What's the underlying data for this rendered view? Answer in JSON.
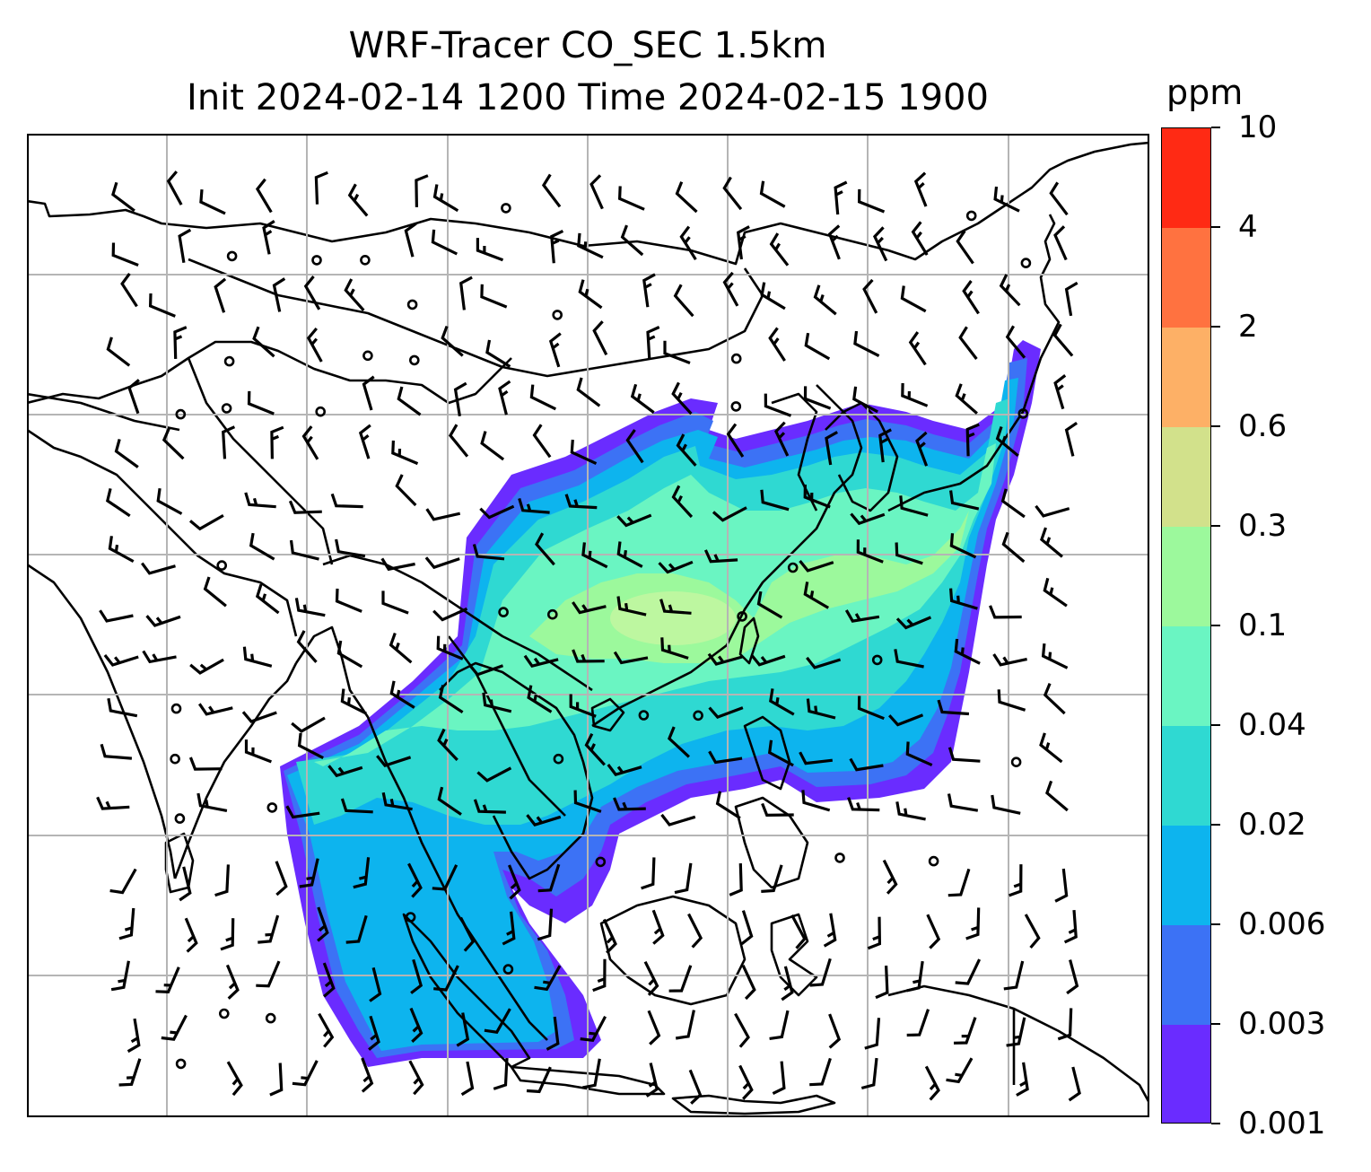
{
  "title": {
    "line1": "WRF-Tracer CO_SEC 1.5km",
    "line2": "Init 2024-02-14 1200 Time 2024-02-15 1900"
  },
  "colorbar": {
    "unit": "ppm",
    "levels": [
      "0.001",
      "0.003",
      "0.006",
      "0.02",
      "0.04",
      "0.1",
      "0.3",
      "0.6",
      "2",
      "4",
      "10"
    ],
    "colors": [
      "#6a2cff",
      "#3c72f5",
      "#0db4ee",
      "#2fd9d2",
      "#6af5c2",
      "#9cf99c",
      "#d2e18b",
      "#fdb066",
      "#ff7240",
      "#ff2a14"
    ]
  },
  "map": {
    "gridlines": "on",
    "field": "CO_SEC tracer concentration",
    "overlays": [
      "coastlines",
      "country borders",
      "wind barbs"
    ]
  }
}
